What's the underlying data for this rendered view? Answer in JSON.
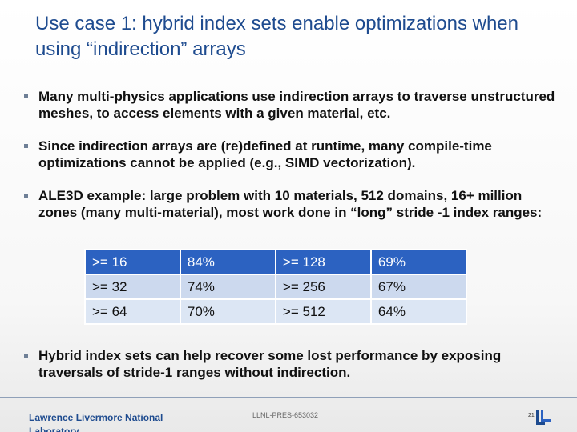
{
  "slide": {
    "title": "Use case 1: hybrid index sets enable optimizations when using “indirection” arrays",
    "bullets": [
      "Many multi-physics applications use indirection arrays to traverse unstructured meshes, to access elements with a given material, etc.",
      "Since indirection arrays are (re)defined at runtime, many compile-time optimizations cannot be applied (e.g., SIMD vectorization).",
      "ALE3D example: large problem with 10 materials, 512 domains, 16+ million zones (many multi-material), most work done in “long” stride -1 index ranges:",
      "Hybrid index sets can help recover some lost performance by exposing traversals of stride-1 ranges without indirection."
    ],
    "table": [
      [
        ">= 16",
        "84%",
        ">= 128",
        "69%"
      ],
      [
        ">= 32",
        "74%",
        ">= 256",
        "67%"
      ],
      [
        ">= 64",
        "70%",
        ">= 512",
        "64%"
      ]
    ]
  },
  "footer": {
    "org": "Lawrence Livermore National Laboratory",
    "doc_id": "LLNL-PRES-653032",
    "page": "21"
  },
  "colors": {
    "title": "#1e4b8f",
    "table_header": "#2c62c1",
    "table_row_light": "#dce6f4",
    "table_row_alt": "#ccd9ee"
  }
}
